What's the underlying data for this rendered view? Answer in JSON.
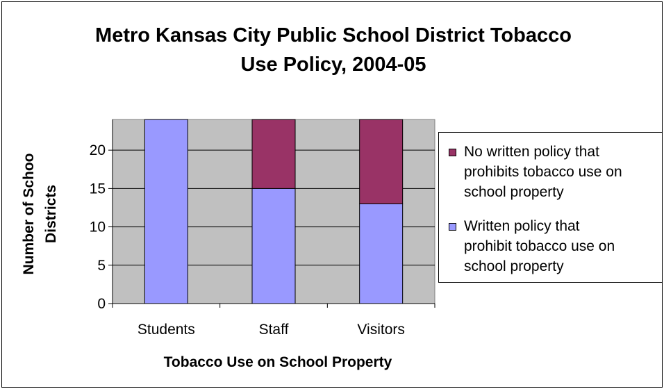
{
  "chart_data": {
    "type": "bar",
    "stacked": true,
    "title": "Metro Kansas City Public School District Tobacco Use Policy, 2004-05",
    "title_lines": [
      "Metro Kansas City Public School District Tobacco",
      "Use Policy, 2004-05"
    ],
    "xlabel": "Tobacco Use on School Property",
    "ylabel": "Number of Schoo Districts",
    "ylabel_lines": [
      "Number of Schoo",
      "Districts"
    ],
    "categories": [
      "Students",
      "Staff",
      "Visitors"
    ],
    "ylim": [
      0,
      24
    ],
    "yticks": [
      0,
      5,
      10,
      15,
      20
    ],
    "grid": true,
    "legend_position": "right",
    "series": [
      {
        "name": "Written policy that prohibit tobacco use on school property",
        "name_lines": [
          "Written policy that",
          "prohibit tobacco use on",
          "school property"
        ],
        "values": [
          24,
          15,
          13
        ],
        "color": "#9999ff"
      },
      {
        "name": "No written policy that prohibits tobacco use on school property",
        "name_lines": [
          "No written policy that",
          "prohibits tobacco use on",
          "school property"
        ],
        "values": [
          0,
          9,
          11
        ],
        "color": "#993366"
      }
    ],
    "plot_background": "#c0c0c0"
  }
}
